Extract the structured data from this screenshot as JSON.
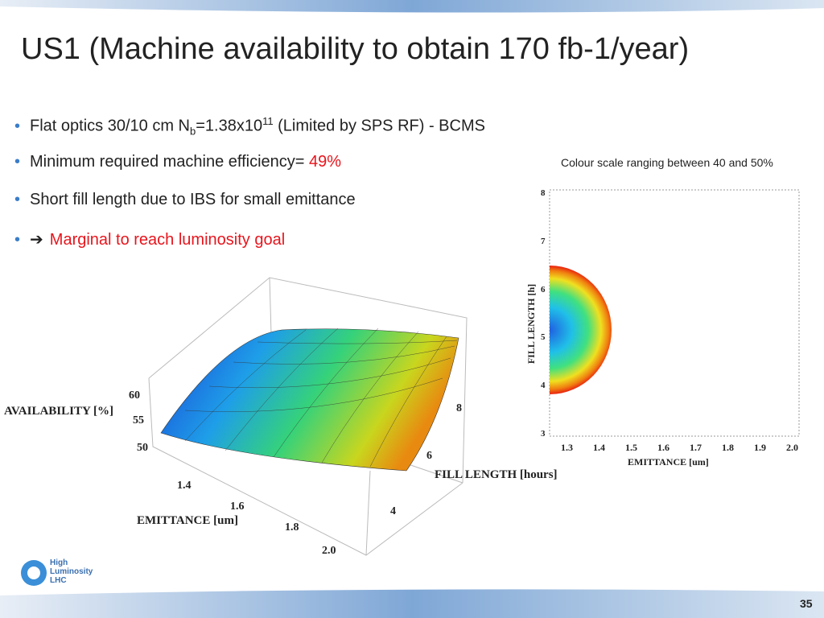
{
  "title": "US1 (Machine availability to obtain 170 fb-1/year)",
  "bullets": [
    {
      "text": "Flat optics 30/10 cm N",
      "sub": "b",
      "mid": "=1.38x10",
      "sup": "11",
      "tail": " (Limited by SPS RF) - BCMS"
    },
    {
      "text": "Minimum required machine efficiency= ",
      "highlight": "49%"
    },
    {
      "text": "Short fill length due to IBS for small emittance"
    },
    {
      "arrow": "➔",
      "highlight": "Marginal to reach luminosity goal"
    }
  ],
  "note": "Colour scale ranging between 40 and 50%",
  "surface_plot": {
    "z_label": "AVAILABILITY [%]",
    "z_ticks": [
      "60",
      "55",
      "50"
    ],
    "x_label": "EMITTANCE [um]",
    "x_ticks": [
      "1.4",
      "1.6",
      "1.8",
      "2.0"
    ],
    "y_label": "FILL LENGTH [hours]",
    "y_ticks": [
      "8",
      "6",
      "4"
    ]
  },
  "contour_plot": {
    "x_label": "EMITTANCE [um]",
    "x_ticks": [
      "1.3",
      "1.4",
      "1.5",
      "1.6",
      "1.7",
      "1.8",
      "1.9",
      "2.0"
    ],
    "y_label": "FILL LENGTH [h]",
    "y_ticks": [
      "8",
      "7",
      "6",
      "5",
      "4",
      "3"
    ]
  },
  "logo": {
    "line1": "High",
    "line2": "Luminosity",
    "line3": "LHC"
  },
  "page_number": "35"
}
